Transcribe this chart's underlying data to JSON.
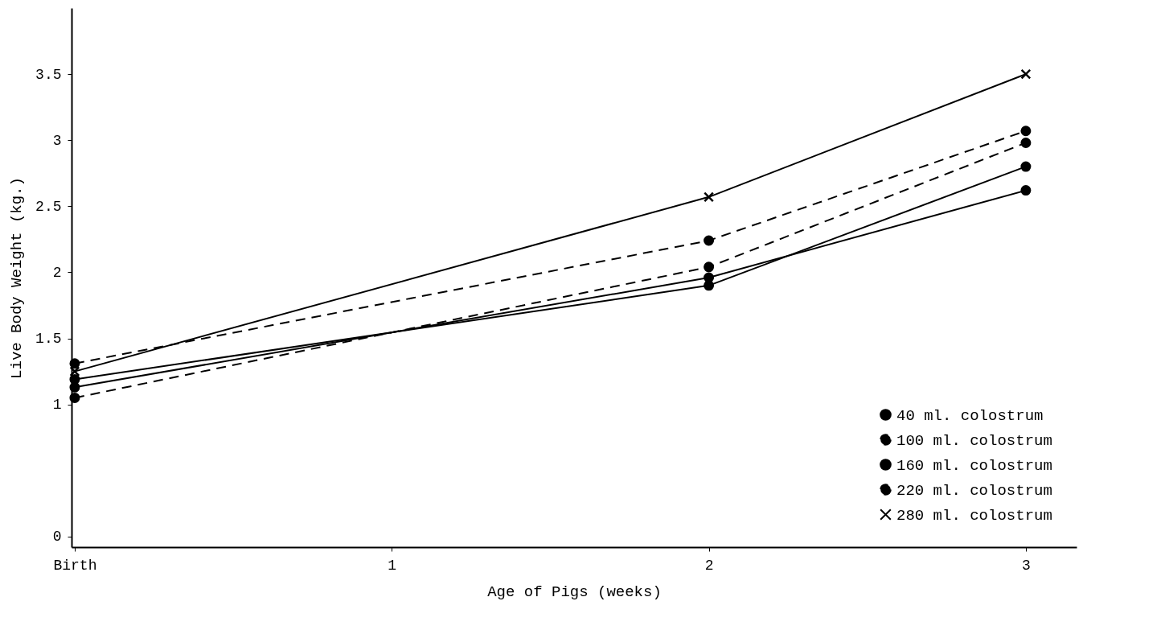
{
  "chart_data": {
    "type": "line",
    "xlabel": "Age of Pigs (weeks)",
    "ylabel": "Live Body Weight (kg.)",
    "x": [
      0,
      2,
      3
    ],
    "xlim": [
      -0.01,
      3.16
    ],
    "xticks": [
      {
        "value": 0,
        "label": "Birth"
      },
      1,
      2,
      3
    ],
    "ylim": [
      -0.08,
      4.0
    ],
    "yticks": [
      0,
      1.0,
      1.5,
      2.0,
      2.5,
      3.0,
      3.5
    ],
    "grid": false,
    "legend": "bottom right",
    "series": [
      {
        "name": "40 ml. colostrum",
        "color": "#000000",
        "values": [
          1.13,
          1.96,
          2.62
        ],
        "line_style": "solid",
        "marker": "circle"
      },
      {
        "name": "100 ml. colostrum",
        "color": "#000000",
        "values": [
          1.31,
          2.24,
          3.07
        ],
        "line_style": "dashed",
        "marker": "circle"
      },
      {
        "name": "160 ml. colostrum",
        "color": "#000000",
        "values": [
          1.19,
          1.9,
          2.8
        ],
        "line_style": "solid",
        "marker": "circle"
      },
      {
        "name": "220 ml. colostrum",
        "color": "#000000",
        "values": [
          1.05,
          2.04,
          2.98
        ],
        "line_style": "dashed",
        "marker": "circle"
      },
      {
        "name": "280 ml. colostrum",
        "color": "#000000",
        "values": [
          1.25,
          2.57,
          3.5
        ],
        "line_style": "solid",
        "marker": "cross"
      }
    ]
  }
}
